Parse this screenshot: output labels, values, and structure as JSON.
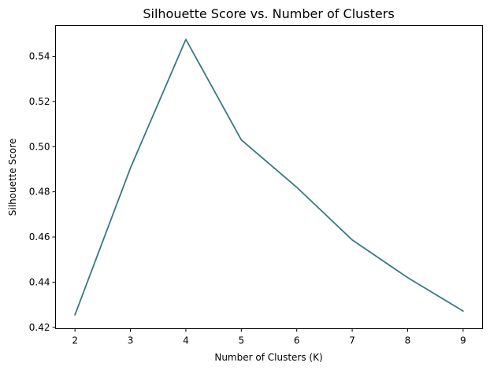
{
  "chart_data": {
    "type": "line",
    "title": "Silhouette Score vs. Number of Clusters",
    "xlabel": "Number of Clusters (K)",
    "ylabel": "Silhouette Score",
    "x": [
      2,
      3,
      4,
      5,
      6,
      7,
      8,
      9
    ],
    "series": [
      {
        "values": [
          0.4255,
          0.4905,
          0.5475,
          0.503,
          0.482,
          0.4587,
          0.442,
          0.4272
        ]
      }
    ],
    "xticks": [
      2,
      3,
      4,
      5,
      6,
      7,
      8,
      9
    ],
    "yticks": [
      0.42,
      0.44,
      0.46,
      0.48,
      0.5,
      0.52,
      0.54
    ],
    "xlim": [
      1.65,
      9.35
    ],
    "ylim": [
      0.4194,
      0.5536
    ],
    "grid": false,
    "colors": {
      "line": "#347a87"
    }
  }
}
